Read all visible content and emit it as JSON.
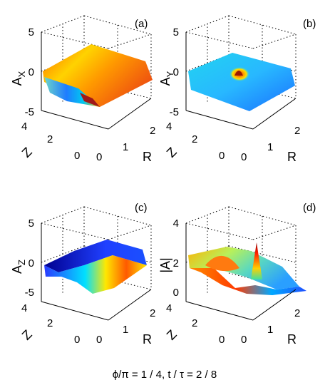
{
  "figure": {
    "caption_text": "ϕ/π = 1 / 4, t / τ = 2 / 8"
  },
  "chart_data": [
    {
      "type": "surface",
      "panel_label": "(a)",
      "zlabel_main": "A",
      "zlabel_sub": "X",
      "xlabel": "R",
      "ylabel": "Z",
      "xlim": [
        0,
        2
      ],
      "ylim": [
        0,
        4
      ],
      "zlim": [
        -5,
        5
      ],
      "x_ticks": [
        "0",
        "1",
        "2"
      ],
      "y_ticks": [
        "0",
        "2",
        "4"
      ],
      "z_ticks": [
        "-5",
        "0",
        "5"
      ],
      "colormap": "jet"
    },
    {
      "type": "surface",
      "panel_label": "(b)",
      "zlabel_main": "A",
      "zlabel_sub": "Y",
      "xlabel": "R",
      "ylabel": "Z",
      "xlim": [
        0,
        2
      ],
      "ylim": [
        0,
        4
      ],
      "zlim": [
        -5,
        5
      ],
      "x_ticks": [
        "0",
        "1",
        "2"
      ],
      "y_ticks": [
        "0",
        "2",
        "4"
      ],
      "z_ticks": [
        "-5",
        "0",
        "5"
      ],
      "colormap": "jet"
    },
    {
      "type": "surface",
      "panel_label": "(c)",
      "zlabel_main": "A",
      "zlabel_sub": "Z",
      "xlabel": "R",
      "ylabel": "Z",
      "xlim": [
        0,
        2
      ],
      "ylim": [
        0,
        4
      ],
      "zlim": [
        -5,
        5
      ],
      "x_ticks": [
        "0",
        "1",
        "2"
      ],
      "y_ticks": [
        "0",
        "2",
        "4"
      ],
      "z_ticks": [
        "-5",
        "0",
        "5"
      ],
      "colormap": "jet"
    },
    {
      "type": "surface",
      "panel_label": "(d)",
      "zlabel_main": "|A|",
      "zlabel_sub": "",
      "xlabel": "R",
      "ylabel": "Z",
      "xlim": [
        0,
        2
      ],
      "ylim": [
        0,
        4
      ],
      "zlim": [
        0,
        4
      ],
      "x_ticks": [
        "0",
        "1",
        "2"
      ],
      "y_ticks": [
        "0",
        "2",
        "4"
      ],
      "z_ticks": [
        "0",
        "2",
        "4"
      ],
      "colormap": "jet"
    }
  ]
}
